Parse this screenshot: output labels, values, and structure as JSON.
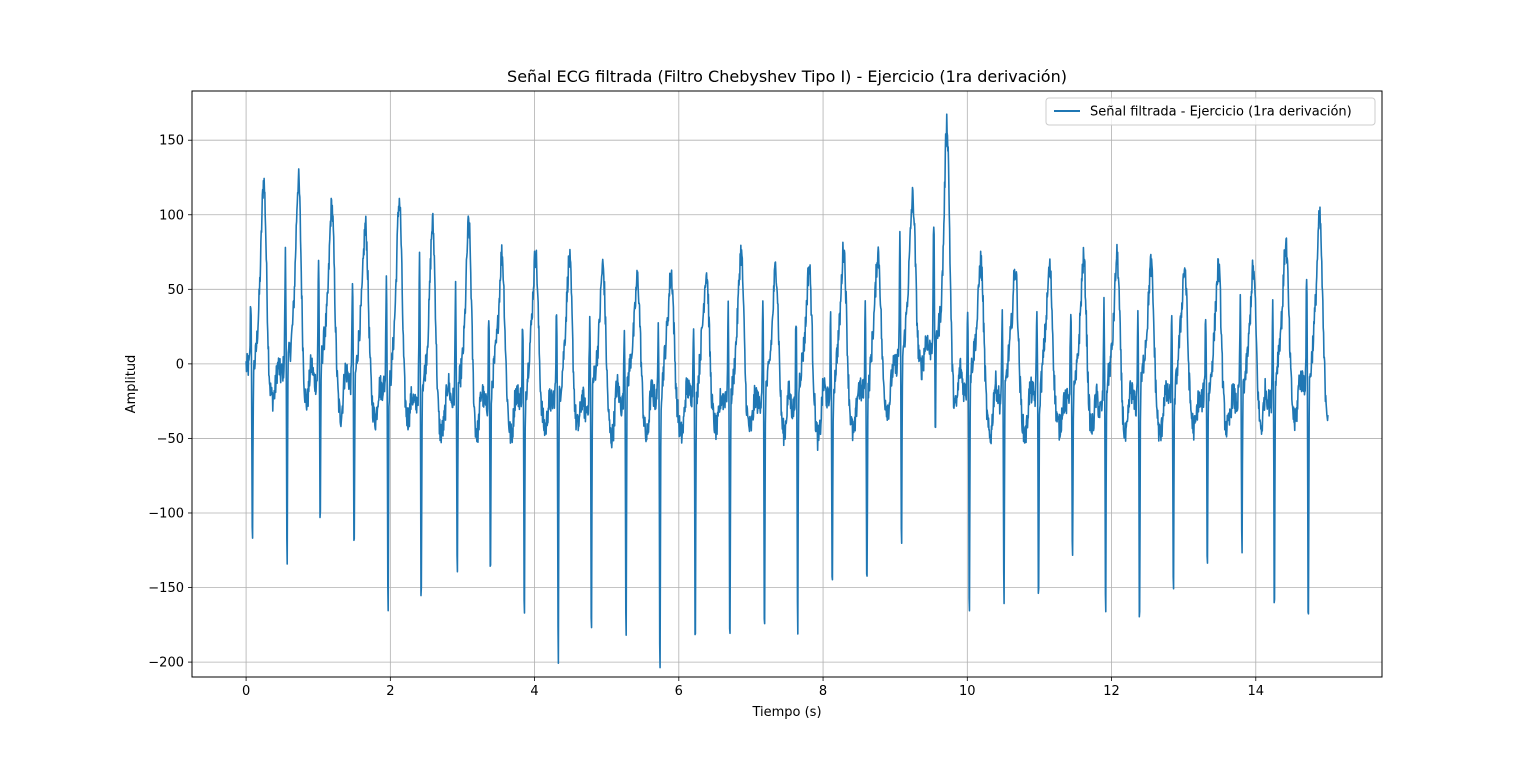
{
  "chart_data": {
    "type": "line",
    "title": "Señal ECG filtrada (Filtro Chebyshev Tipo I) - Ejercicio (1ra derivación)",
    "xlabel": "Tiempo (s)",
    "ylabel": "Amplitud",
    "xlim": [
      -0.75,
      15.75
    ],
    "ylim": [
      -210,
      183
    ],
    "xticks": [
      0,
      2,
      4,
      6,
      8,
      10,
      12,
      14
    ],
    "xtick_labels": [
      "0",
      "2",
      "4",
      "6",
      "8",
      "10",
      "12",
      "14"
    ],
    "yticks": [
      -200,
      -150,
      -100,
      -50,
      0,
      50,
      100,
      150
    ],
    "ytick_labels": [
      "−200",
      "−150",
      "−100",
      "−50",
      "0",
      "50",
      "100",
      "150"
    ],
    "grid": true,
    "legend_position": "top-right",
    "series": [
      {
        "name": "Señal filtrada - Ejercicio (1ra derivación)",
        "color": "#1f77b4",
        "beats": [
          {
            "t": 0.08,
            "r": 45,
            "s": -127,
            "tw": 127
          },
          {
            "t": 0.56,
            "r": 70,
            "s": -136,
            "tw": 125
          },
          {
            "t": 1.02,
            "r": 79,
            "s": -112,
            "tw": 111
          },
          {
            "t": 1.49,
            "r": 73,
            "s": -121,
            "tw": 101
          },
          {
            "t": 1.96,
            "r": 78,
            "s": -150,
            "tw": 117
          },
          {
            "t": 2.42,
            "r": 86,
            "s": -152,
            "tw": 95
          },
          {
            "t": 2.92,
            "r": 70,
            "s": -139,
            "tw": 95
          },
          {
            "t": 3.38,
            "r": 59,
            "s": -125,
            "tw": 80
          },
          {
            "t": 3.85,
            "r": 53,
            "s": -156,
            "tw": 80
          },
          {
            "t": 4.32,
            "r": 56,
            "s": -184,
            "tw": 70
          },
          {
            "t": 4.78,
            "r": 51,
            "s": -174,
            "tw": 65
          },
          {
            "t": 5.26,
            "r": 49,
            "s": -164,
            "tw": 60
          },
          {
            "t": 5.73,
            "r": 53,
            "s": -191,
            "tw": 67
          },
          {
            "t": 6.22,
            "r": 55,
            "s": -174,
            "tw": 66
          },
          {
            "t": 6.7,
            "r": 53,
            "s": -179,
            "tw": 76
          },
          {
            "t": 7.18,
            "r": 55,
            "s": -176,
            "tw": 63
          },
          {
            "t": 7.64,
            "r": 54,
            "s": -165,
            "tw": 68
          },
          {
            "t": 8.12,
            "r": 56,
            "s": -138,
            "tw": 85
          },
          {
            "t": 8.6,
            "r": 58,
            "s": -133,
            "tw": 80
          },
          {
            "t": 9.08,
            "r": 75,
            "s": -137,
            "tw": 113
          },
          {
            "t": 9.55,
            "r": 78,
            "s": -65,
            "tw": 166
          },
          {
            "t": 10.02,
            "r": 55,
            "s": -158,
            "tw": 72
          },
          {
            "t": 10.5,
            "r": 60,
            "s": -140,
            "tw": 70
          },
          {
            "t": 10.98,
            "r": 62,
            "s": -139,
            "tw": 69
          },
          {
            "t": 11.45,
            "r": 60,
            "s": -120,
            "tw": 70
          },
          {
            "t": 11.91,
            "r": 58,
            "s": -152,
            "tw": 72
          },
          {
            "t": 12.38,
            "r": 60,
            "s": -161,
            "tw": 72
          },
          {
            "t": 12.85,
            "r": 57,
            "s": -141,
            "tw": 70
          },
          {
            "t": 13.32,
            "r": 55,
            "s": -118,
            "tw": 64
          },
          {
            "t": 13.8,
            "r": 56,
            "s": -119,
            "tw": 61
          },
          {
            "t": 14.25,
            "r": 63,
            "s": -153,
            "tw": 87
          },
          {
            "t": 14.72,
            "r": 72,
            "s": -166,
            "tw": 106
          }
        ],
        "t_start": 0,
        "t_end": 15
      }
    ]
  }
}
